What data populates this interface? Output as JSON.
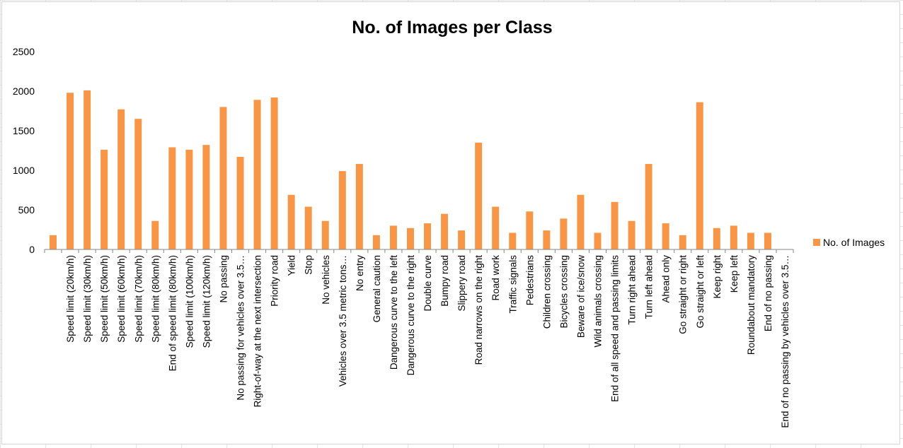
{
  "colors": {
    "bar": "#f79646",
    "axis": "#868686",
    "text": "#000000"
  },
  "chart_data": {
    "type": "bar",
    "title": "No. of Images per Class",
    "xlabel": "",
    "ylabel": "",
    "ylim": [
      0,
      2500
    ],
    "yticks": [
      0,
      500,
      1000,
      1500,
      2000,
      2500
    ],
    "grid": false,
    "legend_position": "right",
    "categories": [
      "",
      "Speed limit (20km/h)",
      "Speed limit (30km/h)",
      "Speed limit (50km/h)",
      "Speed limit (60km/h)",
      "Speed limit (70km/h)",
      "Speed limit (80km/h)",
      "End of speed limit (80km/h)",
      "Speed limit (100km/h)",
      "Speed limit (120km/h)",
      "No passing",
      "No passing for vehicles over 3.5…",
      "Right-of-way at the next intersection",
      "Priority road",
      "Yield",
      "Stop",
      "No vehicles",
      "Vehicles over 3.5 metric tons…",
      "No entry",
      "General caution",
      "Dangerous curve to the left",
      "Dangerous curve to the right",
      "Double curve",
      "Bumpy road",
      "Slippery road",
      "Road narrows on the right",
      "Road work",
      "Traffic signals",
      "Pedestrians",
      "Children crossing",
      "Bicycles crossing",
      "Beware of ice/snow",
      "Wild animals crossing",
      "End of all speed and passing limits",
      "Turn right ahead",
      "Turn left ahead",
      "Ahead only",
      "Go straight or right",
      "Go straight or left",
      "Keep right",
      "Keep left",
      "Roundabout mandatory",
      "End of no passing",
      "End of no passing by vehicles over 3.5…"
    ],
    "series": [
      {
        "name": "No. of Images",
        "values": [
          180,
          1980,
          2010,
          1260,
          1770,
          1650,
          360,
          1290,
          1260,
          1320,
          1800,
          1170,
          1890,
          1920,
          690,
          540,
          360,
          990,
          1080,
          180,
          300,
          270,
          330,
          450,
          240,
          1350,
          540,
          210,
          480,
          240,
          390,
          690,
          210,
          600,
          360,
          1080,
          330,
          180,
          1860,
          270,
          300,
          210,
          210,
          0
        ]
      }
    ]
  }
}
